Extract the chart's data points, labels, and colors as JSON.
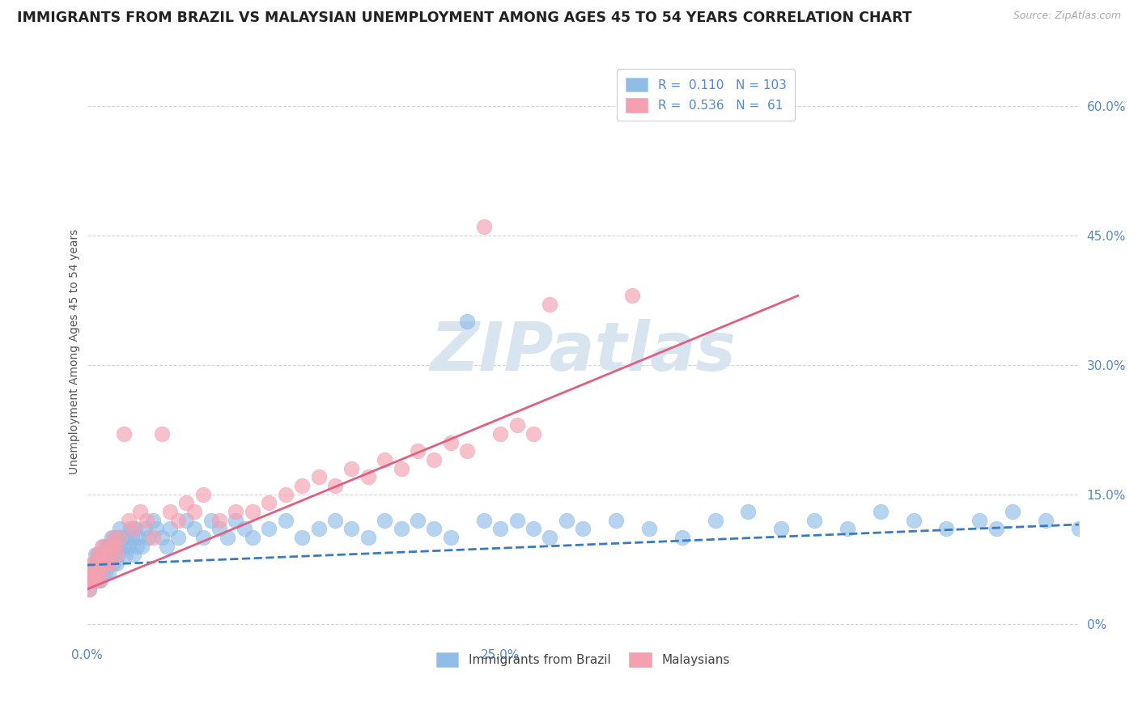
{
  "title": "IMMIGRANTS FROM BRAZIL VS MALAYSIAN UNEMPLOYMENT AMONG AGES 45 TO 54 YEARS CORRELATION CHART",
  "source": "Source: ZipAtlas.com",
  "ylabel_label": "Unemployment Among Ages 45 to 54 years",
  "legend_entries": [
    {
      "label": "Immigrants from Brazil",
      "R": "0.110",
      "N": "103"
    },
    {
      "label": "Malaysians",
      "R": "0.536",
      "N": "61"
    }
  ],
  "blue_scatter_x": [
    0.001,
    0.002,
    0.003,
    0.003,
    0.004,
    0.004,
    0.005,
    0.005,
    0.006,
    0.006,
    0.007,
    0.007,
    0.008,
    0.008,
    0.009,
    0.009,
    0.01,
    0.01,
    0.011,
    0.011,
    0.012,
    0.012,
    0.013,
    0.013,
    0.014,
    0.014,
    0.015,
    0.015,
    0.016,
    0.016,
    0.017,
    0.017,
    0.018,
    0.018,
    0.019,
    0.019,
    0.02,
    0.02,
    0.021,
    0.022,
    0.023,
    0.024,
    0.025,
    0.026,
    0.027,
    0.028,
    0.029,
    0.03,
    0.031,
    0.033,
    0.035,
    0.037,
    0.04,
    0.042,
    0.045,
    0.048,
    0.05,
    0.055,
    0.06,
    0.065,
    0.07,
    0.075,
    0.08,
    0.085,
    0.09,
    0.095,
    0.1,
    0.11,
    0.12,
    0.13,
    0.14,
    0.15,
    0.16,
    0.17,
    0.18,
    0.19,
    0.2,
    0.21,
    0.22,
    0.23,
    0.24,
    0.25,
    0.26,
    0.27,
    0.28,
    0.29,
    0.3,
    0.32,
    0.34,
    0.36,
    0.38,
    0.4,
    0.42,
    0.44,
    0.46,
    0.48,
    0.5,
    0.52,
    0.54,
    0.55,
    0.56,
    0.58,
    0.6
  ],
  "blue_scatter_y": [
    0.04,
    0.05,
    0.06,
    0.05,
    0.07,
    0.06,
    0.08,
    0.06,
    0.05,
    0.07,
    0.06,
    0.08,
    0.07,
    0.05,
    0.08,
    0.06,
    0.07,
    0.09,
    0.08,
    0.06,
    0.09,
    0.07,
    0.08,
    0.06,
    0.07,
    0.09,
    0.08,
    0.1,
    0.09,
    0.07,
    0.1,
    0.08,
    0.09,
    0.07,
    0.1,
    0.08,
    0.09,
    0.11,
    0.1,
    0.09,
    0.08,
    0.1,
    0.09,
    0.11,
    0.1,
    0.08,
    0.11,
    0.09,
    0.1,
    0.09,
    0.11,
    0.1,
    0.12,
    0.11,
    0.1,
    0.09,
    0.11,
    0.1,
    0.12,
    0.11,
    0.1,
    0.12,
    0.11,
    0.1,
    0.12,
    0.11,
    0.1,
    0.11,
    0.12,
    0.1,
    0.11,
    0.12,
    0.11,
    0.1,
    0.12,
    0.11,
    0.12,
    0.11,
    0.1,
    0.35,
    0.12,
    0.11,
    0.12,
    0.11,
    0.1,
    0.12,
    0.11,
    0.12,
    0.11,
    0.1,
    0.12,
    0.13,
    0.11,
    0.12,
    0.11,
    0.13,
    0.12,
    0.11,
    0.12,
    0.11,
    0.13,
    0.12,
    0.11
  ],
  "pink_scatter_x": [
    0.001,
    0.002,
    0.002,
    0.003,
    0.003,
    0.004,
    0.004,
    0.005,
    0.005,
    0.006,
    0.006,
    0.007,
    0.007,
    0.008,
    0.008,
    0.009,
    0.009,
    0.01,
    0.011,
    0.012,
    0.013,
    0.014,
    0.015,
    0.016,
    0.017,
    0.018,
    0.02,
    0.022,
    0.025,
    0.028,
    0.032,
    0.036,
    0.04,
    0.045,
    0.05,
    0.055,
    0.06,
    0.065,
    0.07,
    0.08,
    0.09,
    0.1,
    0.11,
    0.12,
    0.13,
    0.14,
    0.15,
    0.16,
    0.17,
    0.18,
    0.19,
    0.2,
    0.21,
    0.22,
    0.23,
    0.24,
    0.25,
    0.26,
    0.27,
    0.28,
    0.33
  ],
  "pink_scatter_y": [
    0.04,
    0.05,
    0.06,
    0.05,
    0.07,
    0.06,
    0.05,
    0.07,
    0.06,
    0.08,
    0.06,
    0.07,
    0.05,
    0.08,
    0.06,
    0.07,
    0.09,
    0.08,
    0.07,
    0.09,
    0.08,
    0.07,
    0.09,
    0.1,
    0.09,
    0.08,
    0.1,
    0.22,
    0.12,
    0.11,
    0.13,
    0.12,
    0.1,
    0.22,
    0.13,
    0.12,
    0.14,
    0.13,
    0.15,
    0.12,
    0.13,
    0.13,
    0.14,
    0.15,
    0.16,
    0.17,
    0.16,
    0.18,
    0.17,
    0.19,
    0.18,
    0.2,
    0.19,
    0.21,
    0.2,
    0.46,
    0.22,
    0.23,
    0.22,
    0.37,
    0.38
  ],
  "blue_line_x": [
    0.0,
    0.6
  ],
  "blue_line_y": [
    0.068,
    0.115
  ],
  "pink_line_x": [
    0.0,
    0.43
  ],
  "pink_line_y": [
    0.04,
    0.38
  ],
  "xlim": [
    0.0,
    0.6
  ],
  "ylim": [
    -0.02,
    0.65
  ],
  "yticks": [
    0.0,
    0.15,
    0.3,
    0.45,
    0.6
  ],
  "ytick_labels": [
    "0%",
    "15.0%",
    "30.0%",
    "45.0%",
    "60.0%"
  ],
  "xtick_positions": [
    0.0,
    0.25
  ],
  "xtick_labels": [
    "0.0%",
    "25.0%"
  ],
  "blue_scatter_color": "#90bce8",
  "pink_scatter_color": "#f4a0b0",
  "blue_line_color": "#3a7abf",
  "pink_line_color": "#e06080",
  "tick_color": "#5588cc",
  "grid_color": "#cccccc",
  "watermark_color": "#d8e4f0",
  "background_color": "#ffffff",
  "title_fontsize": 12.5,
  "ylabel_fontsize": 10,
  "tick_fontsize": 11,
  "legend_fontsize": 11,
  "watermark_fontsize": 60
}
